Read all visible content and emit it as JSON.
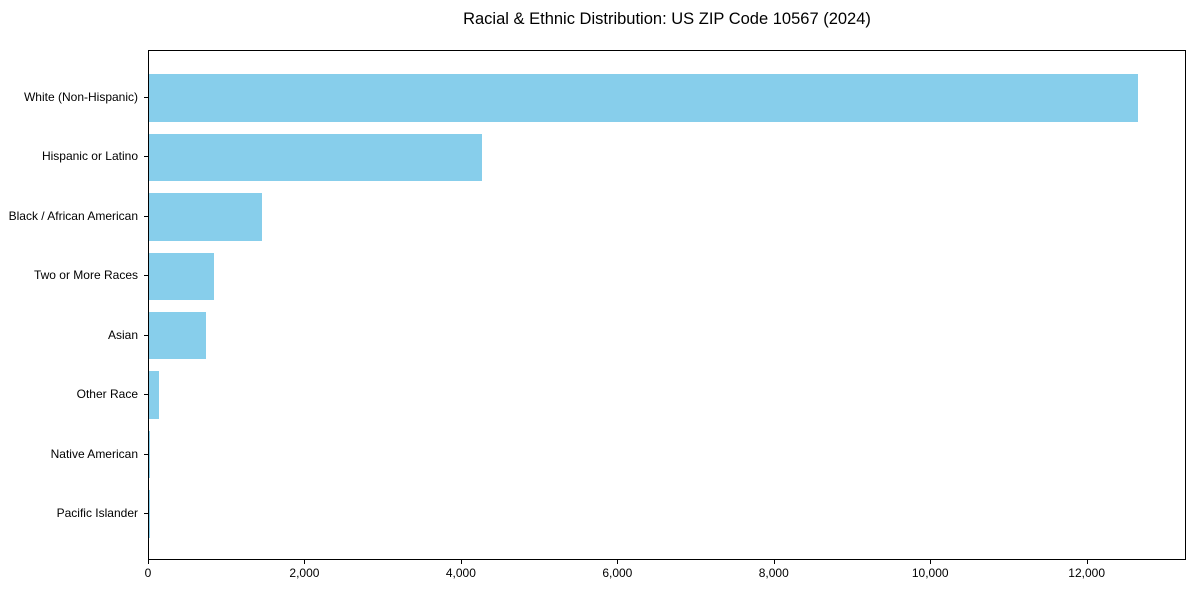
{
  "title": "Racial & Ethnic Distribution: US ZIP Code 10567 (2024)",
  "colors": {
    "bar": "#87CEEB",
    "axis": "#000000",
    "background": "#FFFFFF",
    "text": "#000000"
  },
  "chart_data": {
    "type": "bar",
    "orientation": "horizontal",
    "title": "Racial & Ethnic Distribution: US ZIP Code 10567 (2024)",
    "categories": [
      "White (Non-Hispanic)",
      "Hispanic or Latino",
      "Black / African American",
      "Two or More Races",
      "Asian",
      "Other Race",
      "Native American",
      "Pacific Islander"
    ],
    "values": [
      12640,
      4260,
      1445,
      830,
      730,
      125,
      10,
      4
    ],
    "xlabel": "",
    "ylabel": "",
    "xlim": [
      0,
      13270
    ],
    "xticks": [
      0,
      2000,
      4000,
      6000,
      8000,
      10000,
      12000
    ],
    "xtick_labels": [
      "0",
      "2,000",
      "4,000",
      "6,000",
      "8,000",
      "10,000",
      "12,000"
    ],
    "grid": false,
    "legend": false,
    "bar_color": "#87CEEB",
    "category_order": "largest value at top, values sorted descending"
  }
}
